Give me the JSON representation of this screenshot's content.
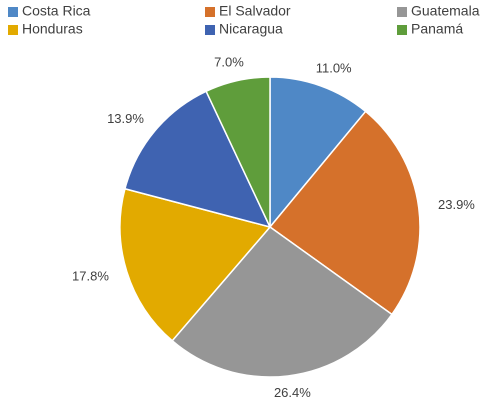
{
  "chart_data": {
    "type": "pie",
    "categories": [
      "Costa Rica",
      "El Salvador",
      "Guatemala",
      "Honduras",
      "Nicaragua",
      "Panamá"
    ],
    "values": [
      11.0,
      23.9,
      26.4,
      17.8,
      13.9,
      7.0
    ],
    "value_labels": [
      "11.0%",
      "23.9%",
      "26.4%",
      "17.8%",
      "13.9%",
      "7.0%"
    ],
    "colors": [
      "#4f88c6",
      "#d5712b",
      "#969696",
      "#e2aa00",
      "#3f63b1",
      "#5f9d3b"
    ],
    "legend": "top"
  }
}
